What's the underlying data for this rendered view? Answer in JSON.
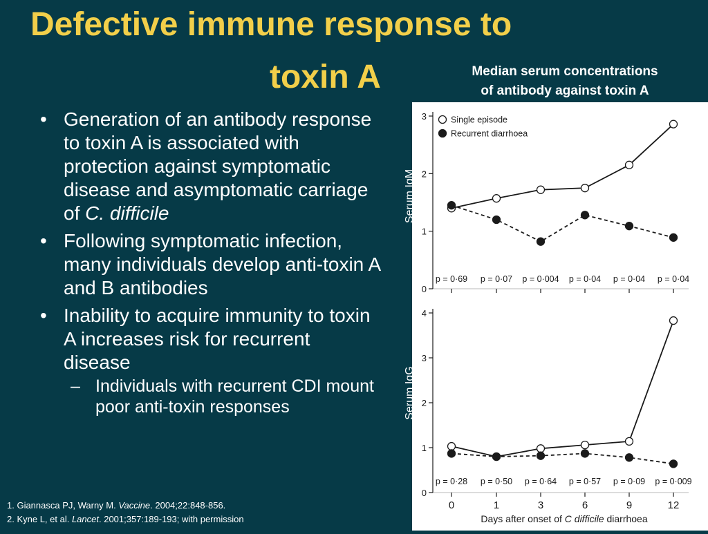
{
  "title_line1": "Defective immune response to",
  "title_line2": "toxin A",
  "chart_subtitle_line1": "Median serum concentrations",
  "chart_subtitle_line2": "of antibody against toxin A",
  "bullets": [
    {
      "text": "Generation of an antibody response to toxin A is associated with protection against symptomatic disease and asymptomatic carriage of ",
      "italic": "C. difficile"
    },
    {
      "text": "Following symptomatic infection, many individuals develop anti-toxin A and B antibodies"
    },
    {
      "text": "Inability to acquire immunity to toxin A increases risk for recurrent disease"
    }
  ],
  "sub_bullet": "Individuals with recurrent CDI mount poor anti-toxin responses",
  "references": [
    {
      "pre": "1. Giannasca PJ, Warny M. ",
      "italic": "Vaccine",
      "post": ". 2004;22:848-856."
    },
    {
      "pre": "2. Kyne L, et al. ",
      "italic": "Lancet",
      "post": ". 2001;357:189-193; with permission"
    }
  ],
  "colors": {
    "background": "#063a47",
    "title": "#f2cf4a",
    "text": "#ffffff",
    "chart_ink": "#1a1a1a"
  },
  "chart_data": [
    {
      "type": "line",
      "ylabel": "Serum IgM",
      "x": [
        0,
        1,
        3,
        6,
        9,
        12
      ],
      "ylim": [
        0,
        3
      ],
      "yticks": [
        0,
        1,
        2,
        3
      ],
      "legend_position": "top-left",
      "series": [
        {
          "name": "Single episode",
          "marker": "open-circle",
          "line": "solid",
          "values": [
            1.4,
            1.57,
            1.72,
            1.75,
            2.15,
            2.86
          ]
        },
        {
          "name": "Recurrent diarrhoea",
          "marker": "filled-circle",
          "line": "dashed",
          "values": [
            1.45,
            1.2,
            0.82,
            1.28,
            1.09,
            0.89
          ]
        }
      ],
      "pvalues": [
        "p = 0·69",
        "p = 0·07",
        "p = 0·004",
        "p = 0·04",
        "p = 0·04",
        "p = 0·04"
      ]
    },
    {
      "type": "line",
      "ylabel": "Serum IgG",
      "xlabel_pre": "Days after onset of ",
      "xlabel_italic": "C difficile",
      "xlabel_post": " diarrhoea",
      "x": [
        0,
        1,
        3,
        6,
        9,
        12
      ],
      "xtick_labels": [
        "0",
        "1",
        "3",
        "6",
        "9",
        "12"
      ],
      "ylim": [
        0,
        4
      ],
      "yticks": [
        0,
        1,
        2,
        3,
        4
      ],
      "series": [
        {
          "name": "Single episode",
          "marker": "open-circle",
          "line": "solid",
          "values": [
            1.03,
            0.8,
            0.98,
            1.06,
            1.14,
            3.83
          ]
        },
        {
          "name": "Recurrent diarrhoea",
          "marker": "filled-circle",
          "line": "dashed",
          "values": [
            0.87,
            0.8,
            0.82,
            0.87,
            0.78,
            0.64
          ]
        }
      ],
      "pvalues": [
        "p = 0·28",
        "p = 0·50",
        "p = 0·64",
        "p = 0·57",
        "p = 0·09",
        "p = 0·009"
      ]
    }
  ]
}
